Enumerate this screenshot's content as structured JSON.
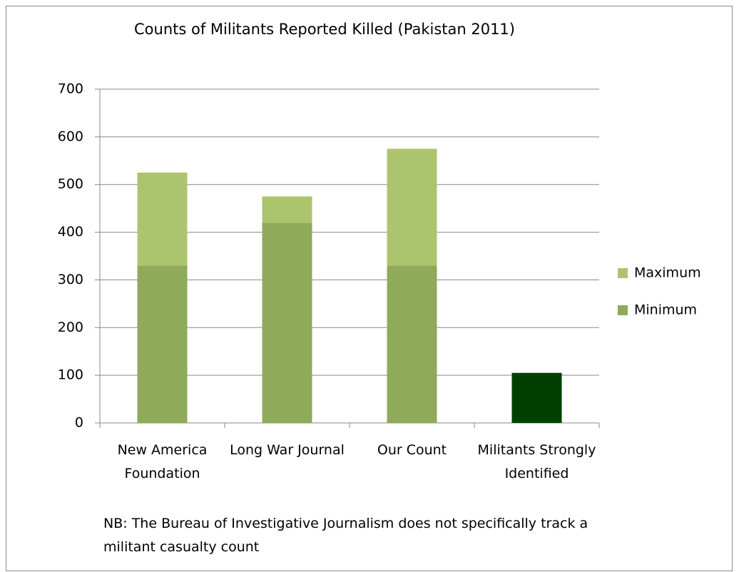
{
  "chart_data": {
    "type": "stacked_bar",
    "title": "Counts of Militants Reported Killed (Pakistan 2011)",
    "categories": [
      "New America Foundation",
      "Long War Journal",
      "Our Count",
      "Militants Strongly Identified"
    ],
    "series": [
      {
        "name": "Minimum",
        "colors": [
          "#8faa5a",
          "#8faa5a",
          "#8faa5a",
          "#004000"
        ],
        "values": [
          330,
          420,
          330,
          105
        ]
      },
      {
        "name": "Maximum",
        "color": "#adc46f",
        "values": [
          195,
          55,
          245,
          null
        ]
      }
    ],
    "ylim": [
      0,
      700
    ],
    "yticks": [
      0,
      100,
      200,
      300,
      400,
      500,
      600,
      700
    ],
    "grid": true,
    "legend": "right",
    "note": "NB: The Bureau of Investigative Journalism does not specifically track a militant casualty count"
  }
}
